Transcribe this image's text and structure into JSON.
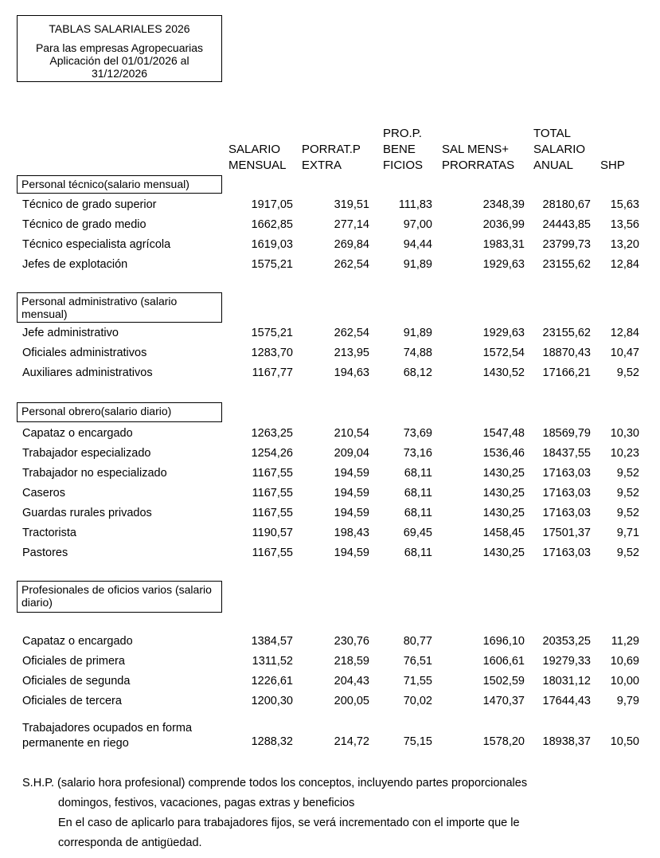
{
  "title": {
    "line1": "TABLAS SALARIALES 2026",
    "line2": "Para las empresas Agropecuarias",
    "line3": "Aplicación del 01/01/2026 al",
    "line4": "31/12/2026"
  },
  "columns": {
    "salario_1": "SALARIO",
    "salario_2": "MENSUAL",
    "porrat_1": "PORRAT.P",
    "porrat_2": "EXTRA",
    "prop_1": "PRO.P.",
    "prop_2": "BENE",
    "prop_3": "FICIOS",
    "salmens_1": "SAL MENS+",
    "salmens_2": "PRORRATAS",
    "total_1": "TOTAL",
    "total_2": "SALARIO",
    "total_3": "ANUAL",
    "shp": "SHP"
  },
  "sections": [
    {
      "title": "Personal técnico(salario mensual)",
      "rows": [
        {
          "label": "Técnico de grado superior",
          "v": [
            "1917,05",
            "319,51",
            "111,83",
            "2348,39",
            "28180,67",
            "15,63"
          ]
        },
        {
          "label": "Técnico de grado medio",
          "v": [
            "1662,85",
            "277,14",
            "97,00",
            "2036,99",
            "24443,85",
            "13,56"
          ]
        },
        {
          "label": "Técnico especialista agrícola",
          "v": [
            "1619,03",
            "269,84",
            "94,44",
            "1983,31",
            "23799,73",
            "13,20"
          ]
        },
        {
          "label": "Jefes de explotación",
          "v": [
            "1575,21",
            "262,54",
            "91,89",
            "1929,63",
            "23155,62",
            "12,84"
          ]
        }
      ]
    },
    {
      "title": "Personal administrativo (salario mensual)",
      "rows": [
        {
          "label": "Jefe administrativo",
          "v": [
            "1575,21",
            "262,54",
            "91,89",
            "1929,63",
            "23155,62",
            "12,84"
          ]
        },
        {
          "label": "Oficiales administrativos",
          "v": [
            "1283,70",
            "213,95",
            "74,88",
            "1572,54",
            "18870,43",
            "10,47"
          ]
        },
        {
          "label": "Auxiliares administrativos",
          "v": [
            "1167,77",
            "194,63",
            "68,12",
            "1430,52",
            "17166,21",
            "9,52"
          ]
        }
      ]
    },
    {
      "title": "Personal obrero(salario diario)",
      "rows": [
        {
          "label": "Capataz o encargado",
          "v": [
            "1263,25",
            "210,54",
            "73,69",
            "1547,48",
            "18569,79",
            "10,30"
          ]
        },
        {
          "label": "Trabajador especializado",
          "v": [
            "1254,26",
            "209,04",
            "73,16",
            "1536,46",
            "18437,55",
            "10,23"
          ]
        },
        {
          "label": "Trabajador no especializado",
          "v": [
            "1167,55",
            "194,59",
            "68,11",
            "1430,25",
            "17163,03",
            "9,52"
          ]
        },
        {
          "label": "Caseros",
          "v": [
            "1167,55",
            "194,59",
            "68,11",
            "1430,25",
            "17163,03",
            "9,52"
          ]
        },
        {
          "label": "Guardas rurales privados",
          "v": [
            "1167,55",
            "194,59",
            "68,11",
            "1430,25",
            "17163,03",
            "9,52"
          ]
        },
        {
          "label": "Tractorista",
          "v": [
            "1190,57",
            "198,43",
            "69,45",
            "1458,45",
            "17501,37",
            "9,71"
          ]
        },
        {
          "label": "Pastores",
          "v": [
            "1167,55",
            "194,59",
            "68,11",
            "1430,25",
            "17163,03",
            "9,52"
          ]
        }
      ]
    },
    {
      "title": "Profesionales de oficios varios (salario diario)",
      "rows": [
        {
          "label": "Capataz o encargado",
          "v": [
            "1384,57",
            "230,76",
            "80,77",
            "1696,10",
            "20353,25",
            "11,29"
          ]
        },
        {
          "label": "Oficiales de primera",
          "v": [
            "1311,52",
            "218,59",
            "76,51",
            "1606,61",
            "19279,33",
            "10,69"
          ]
        },
        {
          "label": "Oficiales de segunda",
          "v": [
            "1226,61",
            "204,43",
            "71,55",
            "1502,59",
            "18031,12",
            "10,00"
          ]
        },
        {
          "label": "Oficiales de tercera",
          "v": [
            "1200,30",
            "200,05",
            "70,02",
            "1470,37",
            "17644,43",
            "9,79"
          ]
        },
        {
          "label": "Trabajadores ocupados en forma permanente en riego",
          "label_1": "Trabajadores ocupados en forma",
          "label_2": "permanente en riego",
          "v": [
            "1288,32",
            "214,72",
            "75,15",
            "1578,20",
            "18938,37",
            "10,50"
          ]
        }
      ]
    }
  ],
  "footnote": {
    "line1": "S.H.P. (salario hora profesional) comprende todos los conceptos, incluyendo partes proporcionales",
    "line2": "domingos, festivos, vacaciones, pagas extras y beneficios",
    "line3": "En el caso de aplicarlo para trabajadores fijos, se verá incrementado con el importe que le",
    "line4": "corresponda de antigüedad."
  }
}
